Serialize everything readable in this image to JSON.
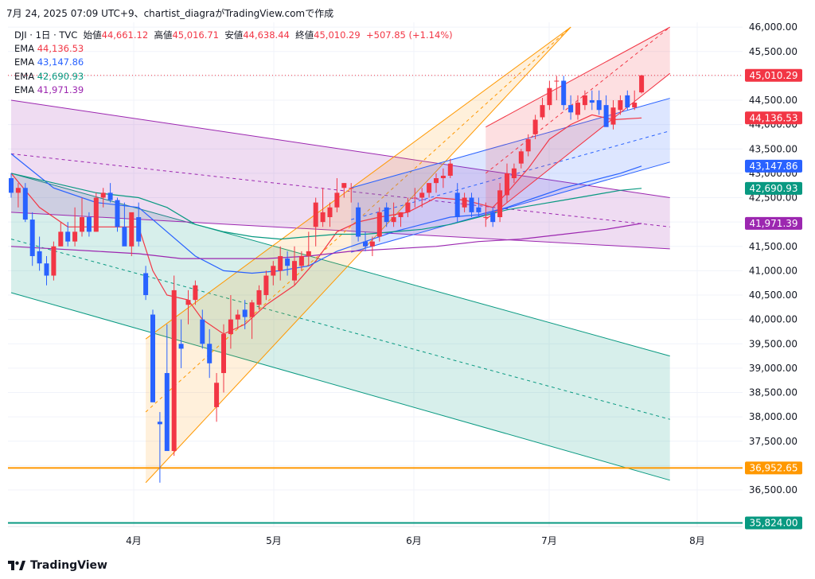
{
  "header": {
    "title": "7月 24, 2025 07:09 UTC+9、chartist_diagraがTradingView.comで作成"
  },
  "legend": {
    "symbol": "DJI · 1日 · TVC",
    "open_label": "始値",
    "open": "44,661.12",
    "high_label": "高値",
    "high": "45,016.71",
    "low_label": "安値",
    "low": "44,638.44",
    "close_label": "終値",
    "close": "45,010.29",
    "change": "+507.85 (+1.14%)",
    "ema": [
      {
        "label": "EMA",
        "value": "44,136.53",
        "color": "#f23645"
      },
      {
        "label": "EMA",
        "value": "43,147.86",
        "color": "#2962ff"
      },
      {
        "label": "EMA",
        "value": "42,690.93",
        "color": "#089981"
      },
      {
        "label": "EMA",
        "value": "41,971.39",
        "color": "#9c27b0"
      }
    ]
  },
  "footer": {
    "brand": "TradingView"
  },
  "chart_data": {
    "type": "candlestick",
    "y_axis": {
      "min": 35750,
      "max": 46100,
      "ticks": [
        36500,
        37000,
        37500,
        38000,
        38500,
        39000,
        39500,
        40000,
        40500,
        41000,
        41500,
        42000,
        42500,
        43000,
        43500,
        44000,
        44500,
        45000,
        45500,
        46000
      ]
    },
    "x_labels": [
      "4月",
      "5月",
      "6月",
      "7月",
      "8月"
    ],
    "price_labels": [
      {
        "value": 45010.29,
        "text": "45,010.29",
        "color": "#f23645"
      },
      {
        "value": 44136.53,
        "text": "44,136.53",
        "color": "#f23645"
      },
      {
        "value": 43147.86,
        "text": "43,147.86",
        "color": "#2962ff"
      },
      {
        "value": 42690.93,
        "text": "42,690.93",
        "color": "#089981"
      },
      {
        "value": 41971.39,
        "text": "41,971.39",
        "color": "#9c27b0"
      },
      {
        "value": 36952.65,
        "text": "36,952.65",
        "color": "#ff9800"
      },
      {
        "value": 35824.0,
        "text": "35,824.00",
        "color": "#089981"
      }
    ],
    "horizontal_lines": [
      {
        "value": 36952.65,
        "color": "#ff9800"
      },
      {
        "value": 35824.0,
        "color": "#089981"
      }
    ],
    "colors": {
      "up": "#f23645",
      "down": "#2962ff"
    },
    "candles": [
      [
        42900,
        43000,
        42500,
        42600
      ],
      [
        42600,
        42800,
        42300,
        42700
      ],
      [
        42700,
        42800,
        42000,
        42050
      ],
      [
        42050,
        42200,
        41100,
        41300
      ],
      [
        41400,
        41700,
        41000,
        41150
      ],
      [
        41150,
        41300,
        40700,
        40900
      ],
      [
        40900,
        41600,
        40800,
        41500
      ],
      [
        41500,
        42000,
        41500,
        41800
      ],
      [
        41800,
        42000,
        41500,
        41600
      ],
      [
        41600,
        42300,
        41500,
        41800
      ],
      [
        41800,
        42500,
        41700,
        42100
      ],
      [
        42100,
        42200,
        41700,
        41800
      ],
      [
        41800,
        42600,
        41800,
        42500
      ],
      [
        42500,
        42700,
        42300,
        42600
      ],
      [
        42600,
        42800,
        42400,
        42450
      ],
      [
        42450,
        42500,
        41800,
        41900
      ],
      [
        41900,
        42400,
        41600,
        41500
      ],
      [
        41500,
        42100,
        41300,
        42200
      ],
      [
        42100,
        42400,
        41500,
        41600
      ],
      [
        40950,
        41100,
        40400,
        40500
      ],
      [
        40100,
        40200,
        38300,
        38300
      ],
      [
        37900,
        38100,
        36650,
        37850
      ],
      [
        38900,
        39900,
        37300,
        37300
      ],
      [
        37300,
        40900,
        37200,
        40600
      ],
      [
        39500,
        40000,
        39000,
        39400
      ],
      [
        40300,
        40600,
        39900,
        40400
      ],
      [
        40400,
        40800,
        40300,
        40700
      ],
      [
        40000,
        40200,
        39400,
        39500
      ],
      [
        39500,
        39800,
        38800,
        39100
      ],
      [
        38200,
        38900,
        37900,
        38700
      ],
      [
        38900,
        39900,
        38500,
        39700
      ],
      [
        39700,
        40500,
        39400,
        40000
      ],
      [
        40000,
        40200,
        39800,
        40100
      ],
      [
        40200,
        40400,
        39800,
        40050
      ],
      [
        40050,
        40400,
        39600,
        40350
      ],
      [
        40300,
        40700,
        40200,
        40600
      ],
      [
        40500,
        41000,
        40400,
        40900
      ],
      [
        40900,
        41200,
        40700,
        41100
      ],
      [
        41000,
        41500,
        40800,
        41300
      ],
      [
        41250,
        41400,
        40900,
        41100
      ],
      [
        40800,
        41500,
        40700,
        41200
      ],
      [
        41100,
        41400,
        41000,
        41300
      ],
      [
        41300,
        41800,
        41100,
        41400
      ],
      [
        41900,
        42500,
        41500,
        42400
      ],
      [
        42000,
        42700,
        41900,
        42200
      ],
      [
        42100,
        42400,
        41900,
        42300
      ],
      [
        42300,
        42900,
        42200,
        42600
      ],
      [
        42700,
        42800,
        42500,
        42800
      ],
      [
        42700,
        42800,
        42400,
        42700
      ],
      [
        42300,
        42400,
        41600,
        41700
      ],
      [
        41600,
        41800,
        41400,
        41500
      ],
      [
        41500,
        41700,
        41300,
        41600
      ],
      [
        41700,
        42300,
        41600,
        42200
      ],
      [
        42300,
        42400,
        41900,
        42000
      ],
      [
        42000,
        42400,
        41900,
        42100
      ],
      [
        42100,
        42200,
        41900,
        42200
      ],
      [
        42200,
        42500,
        42100,
        42400
      ],
      [
        42500,
        42700,
        42300,
        42500
      ],
      [
        42500,
        42700,
        42300,
        42600
      ],
      [
        42600,
        42800,
        42500,
        42800
      ],
      [
        42800,
        43000,
        42600,
        42900
      ],
      [
        42900,
        43100,
        42700,
        42950
      ],
      [
        42950,
        43300,
        42900,
        43200
      ],
      [
        42600,
        42800,
        42000,
        42100
      ],
      [
        42300,
        42600,
        42200,
        42500
      ],
      [
        42500,
        42600,
        42100,
        42200
      ],
      [
        42300,
        42500,
        42100,
        42200
      ],
      [
        42100,
        42400,
        41900,
        42100
      ],
      [
        42200,
        42300,
        41900,
        42000
      ],
      [
        42100,
        42800,
        42000,
        42650
      ],
      [
        42550,
        43200,
        42400,
        43000
      ],
      [
        42900,
        43200,
        42800,
        43100
      ],
      [
        43200,
        43500,
        43100,
        43450
      ],
      [
        43450,
        43800,
        43350,
        43700
      ],
      [
        43800,
        44200,
        43700,
        44100
      ],
      [
        44150,
        44550,
        44100,
        44400
      ],
      [
        44400,
        44900,
        44300,
        44750
      ],
      [
        44900,
        45000,
        44500,
        44900
      ],
      [
        44900,
        45000,
        44300,
        44400
      ],
      [
        44400,
        44600,
        44100,
        44250
      ],
      [
        44200,
        44600,
        44100,
        44450
      ],
      [
        44400,
        44700,
        44300,
        44600
      ],
      [
        44500,
        44700,
        44300,
        44450
      ],
      [
        44500,
        44700,
        44200,
        44300
      ],
      [
        44400,
        44600,
        44000,
        43950
      ],
      [
        44000,
        44500,
        43900,
        44350
      ],
      [
        44300,
        44600,
        44200,
        44500
      ],
      [
        44600,
        44700,
        44300,
        44350
      ],
      [
        44350,
        44700,
        44300,
        44450
      ],
      [
        44661.12,
        45016.71,
        44638.44,
        45010.29
      ]
    ],
    "ema_series": [
      {
        "name": "EMA",
        "value": 44136.53,
        "color": "#f23645",
        "points": [
          [
            0,
            43000
          ],
          [
            4,
            42300
          ],
          [
            8,
            41900
          ],
          [
            12,
            41900
          ],
          [
            16,
            41900
          ],
          [
            18,
            41900
          ],
          [
            20,
            41000
          ],
          [
            22,
            40500
          ],
          [
            25,
            40400
          ],
          [
            27,
            40000
          ],
          [
            30,
            39700
          ],
          [
            33,
            39900
          ],
          [
            36,
            40300
          ],
          [
            40,
            40700
          ],
          [
            43,
            41200
          ],
          [
            46,
            41800
          ],
          [
            49,
            42000
          ],
          [
            52,
            42100
          ],
          [
            56,
            42200
          ],
          [
            60,
            42500
          ],
          [
            64,
            42450
          ],
          [
            68,
            42300
          ],
          [
            70,
            42600
          ],
          [
            73,
            43100
          ],
          [
            76,
            43700
          ],
          [
            79,
            44000
          ],
          [
            82,
            44200
          ],
          [
            85,
            44100
          ],
          [
            89,
            44136
          ]
        ]
      },
      {
        "name": "EMA",
        "value": 43147.86,
        "color": "#2962ff",
        "points": [
          [
            0,
            43400
          ],
          [
            6,
            42700
          ],
          [
            12,
            42400
          ],
          [
            18,
            42300
          ],
          [
            22,
            41800
          ],
          [
            26,
            41300
          ],
          [
            30,
            41000
          ],
          [
            34,
            40950
          ],
          [
            38,
            41000
          ],
          [
            42,
            41100
          ],
          [
            46,
            41400
          ],
          [
            50,
            41600
          ],
          [
            54,
            41800
          ],
          [
            58,
            41950
          ],
          [
            62,
            42100
          ],
          [
            66,
            42150
          ],
          [
            70,
            42300
          ],
          [
            74,
            42500
          ],
          [
            78,
            42700
          ],
          [
            82,
            42850
          ],
          [
            86,
            43000
          ],
          [
            89,
            43148
          ]
        ]
      },
      {
        "name": "EMA",
        "value": 42690.93,
        "color": "#089981",
        "points": [
          [
            0,
            43000
          ],
          [
            6,
            42800
          ],
          [
            12,
            42600
          ],
          [
            18,
            42500
          ],
          [
            22,
            42300
          ],
          [
            26,
            41950
          ],
          [
            30,
            41800
          ],
          [
            34,
            41700
          ],
          [
            38,
            41650
          ],
          [
            42,
            41700
          ],
          [
            46,
            41750
          ],
          [
            50,
            41750
          ],
          [
            54,
            41800
          ],
          [
            58,
            41850
          ],
          [
            62,
            41950
          ],
          [
            66,
            42100
          ],
          [
            70,
            42250
          ],
          [
            74,
            42350
          ],
          [
            78,
            42450
          ],
          [
            82,
            42550
          ],
          [
            86,
            42650
          ],
          [
            89,
            42691
          ]
        ]
      },
      {
        "name": "EMA",
        "value": 41971.39,
        "color": "#9c27b0",
        "points": [
          [
            0,
            41500
          ],
          [
            6,
            41450
          ],
          [
            12,
            41400
          ],
          [
            18,
            41350
          ],
          [
            24,
            41250
          ],
          [
            30,
            41250
          ],
          [
            36,
            41250
          ],
          [
            42,
            41300
          ],
          [
            48,
            41400
          ],
          [
            54,
            41450
          ],
          [
            60,
            41500
          ],
          [
            66,
            41600
          ],
          [
            72,
            41650
          ],
          [
            78,
            41750
          ],
          [
            84,
            41850
          ],
          [
            89,
            41971
          ]
        ]
      }
    ],
    "channels": [
      {
        "color": "#089981",
        "fill": "rgba(8,153,129,0.16)",
        "top": [
          [
            0,
            43000
          ],
          [
            93,
            39250
          ]
        ],
        "bottom": [
          [
            0,
            40550
          ],
          [
            93,
            36700
          ]
        ],
        "mid": [
          [
            0,
            41650
          ],
          [
            93,
            37950
          ]
        ]
      },
      {
        "color": "#9c27b0",
        "fill": "rgba(156,39,176,0.16)",
        "top": [
          [
            0,
            44500
          ],
          [
            93,
            42500
          ]
        ],
        "bottom": [
          [
            0,
            42200
          ],
          [
            93,
            41450
          ]
        ],
        "mid": [
          [
            0,
            43400
          ],
          [
            93,
            41900
          ]
        ]
      },
      {
        "color": "#ff9800",
        "fill": "rgba(255,152,0,0.14)",
        "top": [
          [
            19,
            39600
          ],
          [
            79,
            46000
          ]
        ],
        "bottom": [
          [
            19,
            36650
          ],
          [
            79,
            46000
          ]
        ],
        "mid": [
          [
            19,
            38100
          ],
          [
            79,
            46000
          ]
        ]
      },
      {
        "color": "#2962ff",
        "fill": "rgba(41,98,255,0.16)",
        "top": [
          [
            48,
            42700
          ],
          [
            93,
            44540
          ]
        ],
        "bottom": [
          [
            48,
            41380
          ],
          [
            93,
            43230
          ]
        ],
        "mid": [
          [
            48,
            42050
          ],
          [
            93,
            43870
          ]
        ]
      },
      {
        "color": "#f23645",
        "fill": "rgba(242,54,69,0.16)",
        "top": [
          [
            67,
            43950
          ],
          [
            93,
            46000
          ]
        ],
        "bottom": [
          [
            67,
            42050
          ],
          [
            93,
            45050
          ]
        ],
        "mid": [
          [
            67,
            43000
          ],
          [
            93,
            46000
          ]
        ]
      }
    ]
  }
}
